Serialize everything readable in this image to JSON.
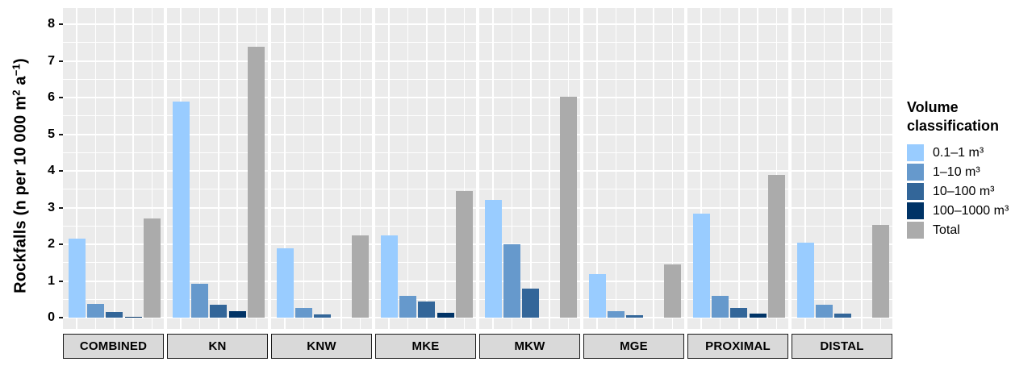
{
  "chart_data": {
    "type": "bar",
    "title": "",
    "ylabel": "Rockfalls (n per 10 000 m² a⁻¹)",
    "ylabel_segments": [
      {
        "t": "Rockfalls (n per 10 000 m",
        "sup": false
      },
      {
        "t": "2",
        "sup": true
      },
      {
        "t": " a",
        "sup": false
      },
      {
        "t": "−1",
        "sup": true
      },
      {
        "t": ")",
        "sup": false
      }
    ],
    "facets": [
      "COMBINED",
      "KN",
      "KNW",
      "MKE",
      "MKW",
      "MGE",
      "PROXIMAL",
      "DISTAL"
    ],
    "series": [
      {
        "name": "0.1–1 m³",
        "color": "#99CCFF",
        "values": [
          2.15,
          5.9,
          1.9,
          2.25,
          3.2,
          1.18,
          2.83,
          2.04
        ]
      },
      {
        "name": "1–10 m³",
        "color": "#6699CC",
        "values": [
          0.38,
          0.92,
          0.27,
          0.6,
          2.0,
          0.18,
          0.6,
          0.35
        ]
      },
      {
        "name": "10–100 m³",
        "color": "#336699",
        "values": [
          0.15,
          0.35,
          0.08,
          0.44,
          0.8,
          0.07,
          0.27,
          0.11
        ]
      },
      {
        "name": "100–1000 m³",
        "color": "#003366",
        "values": [
          0.03,
          0.18,
          0.0,
          0.13,
          0.0,
          0.0,
          0.1,
          0.0
        ]
      },
      {
        "name": "Total",
        "color": "#ABABAB",
        "values": [
          2.7,
          7.38,
          2.24,
          3.46,
          6.02,
          1.46,
          3.89,
          2.52
        ]
      }
    ],
    "ylim": [
      0,
      8.44
    ],
    "yticks": [
      0,
      1,
      2,
      3,
      4,
      5,
      6,
      7,
      8
    ],
    "grid": true,
    "legend_title": "Volume classification",
    "legend_position": "right",
    "panel_bg": "#EBEBEB",
    "grid_color": "#FFFFFF",
    "strip_bg": "#D9D9D9"
  }
}
